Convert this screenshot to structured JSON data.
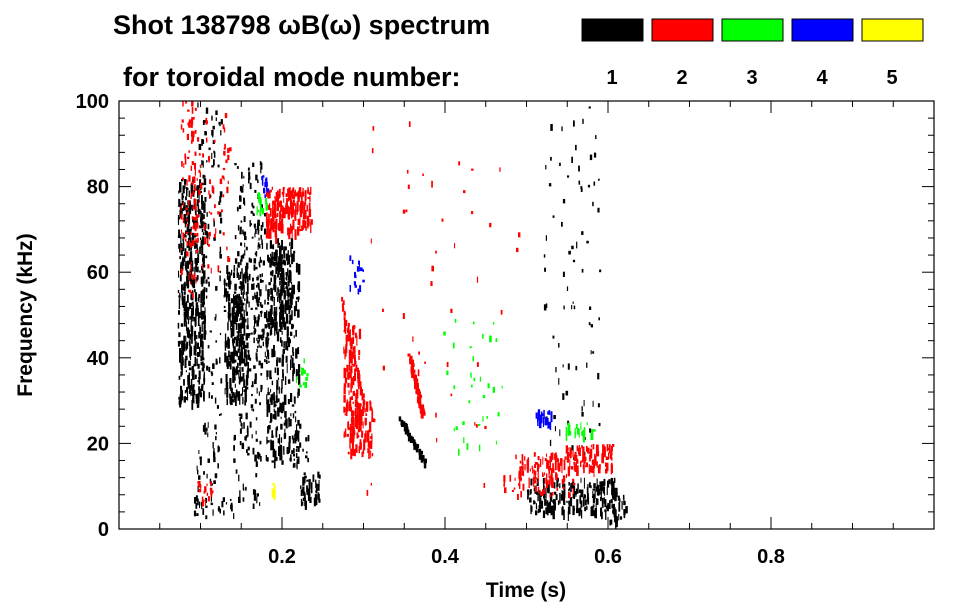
{
  "chart_data": {
    "type": "scatter",
    "title": "Shot 138798 ωB(ω) spectrum",
    "subtitle": "for toroidal mode number:",
    "xlabel": "Time (s)",
    "ylabel": "Frequency (kHz)",
    "xlim": [
      0.0,
      1.0
    ],
    "ylim": [
      0,
      100
    ],
    "x_ticks": [
      0.2,
      0.4,
      0.6,
      0.8
    ],
    "x_tick_labels": [
      "0.2",
      "0.4",
      "0.6",
      "0.8"
    ],
    "y_ticks": [
      0,
      20,
      40,
      60,
      80,
      100
    ],
    "y_tick_labels": [
      "0",
      "20",
      "40",
      "60",
      "80",
      "100"
    ],
    "grid": false,
    "legend_position": "top-right",
    "legend": [
      {
        "label": "1",
        "color": "#000000"
      },
      {
        "label": "2",
        "color": "#ff0000"
      },
      {
        "label": "3",
        "color": "#00ff00"
      },
      {
        "label": "4",
        "color": "#0000ff"
      },
      {
        "label": "5",
        "color": "#ffff00"
      }
    ],
    "series": [
      {
        "mode": "1",
        "color": "#000000",
        "regions": [
          {
            "x": [
              0.072,
              0.104
            ],
            "y": [
              30,
              82
            ],
            "density": 0.95
          },
          {
            "x": [
              0.095,
              0.125
            ],
            "y": [
              10,
              100
            ],
            "density": 0.22
          },
          {
            "x": [
              0.128,
              0.158
            ],
            "y": [
              30,
              62
            ],
            "density": 0.85
          },
          {
            "x": [
              0.138,
              0.15
            ],
            "y": [
              40,
              55
            ],
            "density": 1.0
          },
          {
            "x": [
              0.14,
              0.175
            ],
            "y": [
              5,
              88
            ],
            "density": 0.3
          },
          {
            "x": [
              0.165,
              0.182
            ],
            "y": [
              38,
              74
            ],
            "density": 0.5
          },
          {
            "x": [
              0.18,
              0.22
            ],
            "y": [
              16,
              65
            ],
            "density": 0.55
          },
          {
            "x": [
              0.185,
              0.212
            ],
            "y": [
              48,
              68
            ],
            "density": 0.95
          },
          {
            "x": [
              0.09,
              0.14
            ],
            "y": [
              3,
              8
            ],
            "density": 0.45
          },
          {
            "x": [
              0.222,
              0.245
            ],
            "y": [
              6,
              14
            ],
            "density": 0.9
          },
          {
            "x": [
              0.21,
              0.232
            ],
            "y": [
              15,
              25
            ],
            "density": 0.4
          },
          {
            "x": [
              0.5,
              0.61
            ],
            "y": [
              4,
              12
            ],
            "density": 0.95
          },
          {
            "x": [
              0.6,
              0.622
            ],
            "y": [
              2,
              8
            ],
            "density": 0.7
          },
          {
            "x": [
              0.52,
              0.59
            ],
            "y": [
              12,
              100
            ],
            "density": 0.05
          }
        ],
        "lines": [
          {
            "x": [
              0.345,
              0.375
            ],
            "y": [
              26,
              16
            ],
            "thickness": 2.5
          }
        ]
      },
      {
        "mode": "2",
        "color": "#ff0000",
        "regions": [
          {
            "x": [
              0.075,
              0.095
            ],
            "y": [
              55,
              100
            ],
            "density": 0.4
          },
          {
            "x": [
              0.085,
              0.135
            ],
            "y": [
              60,
              100
            ],
            "density": 0.15
          },
          {
            "x": [
              0.18,
              0.235
            ],
            "y": [
              70,
              80
            ],
            "density": 0.9
          },
          {
            "x": [
              0.2,
              0.23
            ],
            "y": [
              74,
              80
            ],
            "density": 1.0
          },
          {
            "x": [
              0.18,
              0.2
            ],
            "y": [
              68,
              76
            ],
            "density": 0.6
          },
          {
            "x": [
              0.275,
              0.295
            ],
            "y": [
              22,
              48
            ],
            "density": 0.9
          },
          {
            "x": [
              0.28,
              0.31
            ],
            "y": [
              18,
              30
            ],
            "density": 0.9
          },
          {
            "x": [
              0.49,
              0.54
            ],
            "y": [
              12,
              18
            ],
            "density": 0.95
          },
          {
            "x": [
              0.54,
              0.605
            ],
            "y": [
              14,
              20
            ],
            "density": 0.95
          },
          {
            "x": [
              0.47,
              0.56
            ],
            "y": [
              8,
              13
            ],
            "density": 0.35
          },
          {
            "x": [
              0.095,
              0.115
            ],
            "y": [
              5,
              12
            ],
            "density": 0.4
          },
          {
            "x": [
              0.3,
              0.5
            ],
            "y": [
              8,
              100
            ],
            "density": 0.01
          }
        ],
        "lines": [
          {
            "x": [
              0.355,
              0.372
            ],
            "y": [
              41,
              27
            ],
            "thickness": 3.0
          },
          {
            "x": [
              0.272,
              0.3
            ],
            "y": [
              54,
              30
            ],
            "thickness": 2.0
          }
        ]
      },
      {
        "mode": "3",
        "color": "#00ff00",
        "regions": [
          {
            "x": [
              0.168,
              0.18
            ],
            "y": [
              74,
              79
            ],
            "density": 0.9
          },
          {
            "x": [
              0.548,
              0.585
            ],
            "y": [
              22,
              25
            ],
            "density": 0.8
          },
          {
            "x": [
              0.395,
              0.47
            ],
            "y": [
              18,
              50
            ],
            "density": 0.05
          },
          {
            "x": [
              0.215,
              0.23
            ],
            "y": [
              30,
              42
            ],
            "density": 0.2
          }
        ],
        "lines": []
      },
      {
        "mode": "4",
        "color": "#0000ff",
        "regions": [
          {
            "x": [
              0.172,
              0.182
            ],
            "y": [
              78,
              83
            ],
            "density": 0.9
          },
          {
            "x": [
              0.51,
              0.53
            ],
            "y": [
              24,
              28
            ],
            "density": 0.9
          },
          {
            "x": [
              0.28,
              0.3
            ],
            "y": [
              56,
              64
            ],
            "density": 0.35
          }
        ],
        "lines": []
      },
      {
        "mode": "5",
        "color": "#ffff00",
        "regions": [
          {
            "x": [
              0.185,
              0.192
            ],
            "y": [
              9,
              11
            ],
            "density": 0.9
          }
        ],
        "lines": []
      }
    ]
  }
}
